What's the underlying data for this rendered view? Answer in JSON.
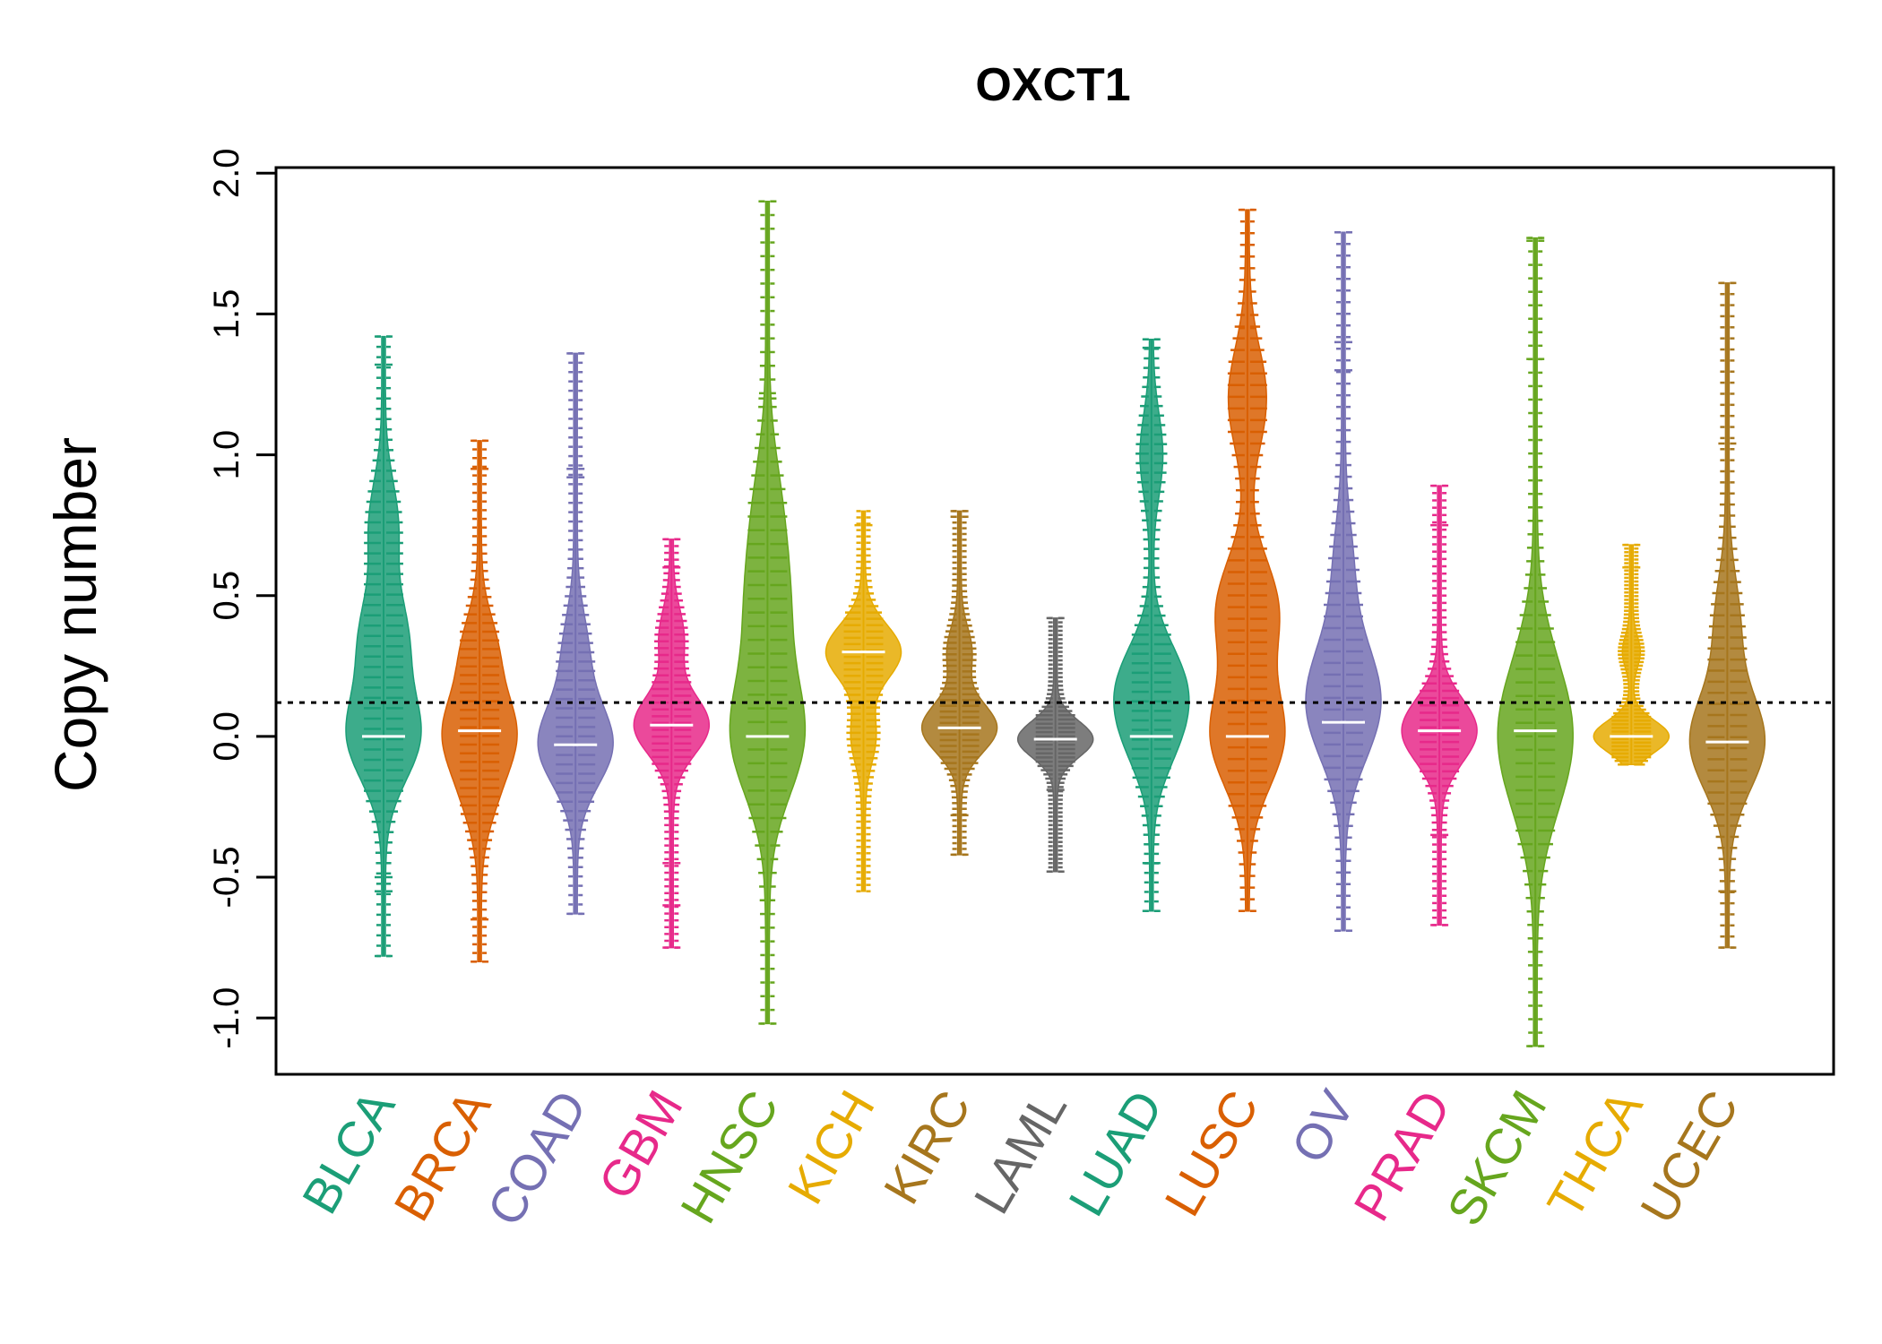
{
  "chart_data": {
    "type": "beanplot",
    "title": "OXCT1",
    "xlabel": "",
    "ylabel": "Copy number",
    "ylim": [
      -1.2,
      2.02
    ],
    "yticks": [
      "-1.0",
      "-0.5",
      "0.0",
      "0.5",
      "1.0",
      "1.5",
      "2.0"
    ],
    "ytick_values": [
      -1.0,
      -0.5,
      0.0,
      0.5,
      1.0,
      1.5,
      2.0
    ],
    "reference_line": 0.12,
    "grid": false,
    "legend": "none",
    "categories": [
      "BLCA",
      "BRCA",
      "COAD",
      "GBM",
      "HNSC",
      "KICH",
      "KIRC",
      "LAML",
      "LUAD",
      "LUSC",
      "OV",
      "PRAD",
      "SKCM",
      "THCA",
      "UCEC"
    ],
    "colors": [
      "#1B9E77",
      "#D95F02",
      "#7570B3",
      "#E7298A",
      "#66A61E",
      "#E6AB02",
      "#A6761D",
      "#666666",
      "#1B9E77",
      "#D95F02",
      "#7570B3",
      "#E7298A",
      "#66A61E",
      "#E6AB02",
      "#A6761D"
    ],
    "series": [
      {
        "category": "BLCA",
        "min": -0.78,
        "max": 1.42,
        "mean": 0.12,
        "modes": [
          [
            0.0,
            0.8
          ],
          [
            0.35,
            0.5
          ],
          [
            0.75,
            0.3
          ]
        ],
        "outliers": [
          -0.78,
          -0.55,
          -0.5,
          1.32,
          1.42
        ]
      },
      {
        "category": "BRCA",
        "min": -0.8,
        "max": 1.05,
        "mean": 0.12,
        "modes": [
          [
            0.02,
            1.0
          ],
          [
            0.3,
            0.5
          ],
          [
            -0.2,
            0.4
          ]
        ],
        "outliers": [
          -0.8,
          -0.65,
          0.95,
          1.05
        ]
      },
      {
        "category": "COAD",
        "min": -0.63,
        "max": 1.36,
        "mean": 0.12,
        "modes": [
          [
            -0.03,
            1.0
          ],
          [
            0.3,
            0.3
          ]
        ],
        "outliers": [
          -0.63,
          0.92,
          0.95,
          1.36
        ]
      },
      {
        "category": "GBM",
        "min": -0.75,
        "max": 0.7,
        "mean": 0.12,
        "modes": [
          [
            0.04,
            1.0
          ],
          [
            0.35,
            0.3
          ]
        ],
        "outliers": [
          -0.75,
          -0.6,
          -0.45,
          0.6,
          0.7
        ]
      },
      {
        "category": "HNSC",
        "min": -1.02,
        "max": 1.9,
        "mean": 0.12,
        "modes": [
          [
            0.0,
            0.8
          ],
          [
            0.45,
            0.4
          ],
          [
            0.8,
            0.25
          ]
        ],
        "outliers": [
          -1.02,
          1.2,
          1.9
        ]
      },
      {
        "category": "KICH",
        "min": -0.55,
        "max": 0.8,
        "mean": 0.12,
        "modes": [
          [
            0.3,
            1.0
          ],
          [
            0.0,
            0.3
          ]
        ],
        "outliers": [
          0.75
        ]
      },
      {
        "category": "KIRC",
        "min": -0.42,
        "max": 0.8,
        "mean": 0.12,
        "modes": [
          [
            0.03,
            1.0
          ],
          [
            0.3,
            0.3
          ]
        ],
        "outliers": [
          -0.42,
          -0.28,
          0.78,
          0.8
        ]
      },
      {
        "category": "LAML",
        "min": -0.48,
        "max": 0.42,
        "mean": 0.12,
        "modes": [
          [
            -0.01,
            1.0
          ]
        ],
        "outliers": [
          -0.48,
          -0.19,
          0.42
        ]
      },
      {
        "category": "LUAD",
        "min": -0.62,
        "max": 1.41,
        "mean": 0.12,
        "modes": [
          [
            0.0,
            0.6
          ],
          [
            0.2,
            0.8
          ],
          [
            1.0,
            0.3
          ]
        ],
        "outliers": [
          -0.62,
          -0.45,
          1.38,
          1.41
        ]
      },
      {
        "category": "LUSC",
        "min": -0.62,
        "max": 1.87,
        "mean": 0.12,
        "modes": [
          [
            0.0,
            0.6
          ],
          [
            0.45,
            0.5
          ],
          [
            1.2,
            0.3
          ]
        ],
        "outliers": [
          -0.62,
          1.45,
          1.87
        ]
      },
      {
        "category": "OV",
        "min": -0.69,
        "max": 1.79,
        "mean": 0.12,
        "modes": [
          [
            0.05,
            1.0
          ],
          [
            0.22,
            0.8
          ],
          [
            0.6,
            0.35
          ]
        ],
        "outliers": [
          -0.69,
          1.3,
          1.4,
          1.79
        ]
      },
      {
        "category": "PRAD",
        "min": -0.67,
        "max": 0.89,
        "mean": 0.12,
        "modes": [
          [
            0.02,
            1.0
          ]
        ],
        "outliers": [
          -0.67,
          -0.35,
          0.75,
          0.89
        ]
      },
      {
        "category": "SKCM",
        "min": -1.1,
        "max": 1.77,
        "mean": 0.12,
        "modes": [
          [
            0.02,
            0.8
          ],
          [
            -0.2,
            0.4
          ],
          [
            0.25,
            0.3
          ]
        ],
        "outliers": [
          -1.1,
          1.34,
          1.76,
          1.77
        ]
      },
      {
        "category": "THCA",
        "min": -0.1,
        "max": 0.68,
        "mean": 0.12,
        "modes": [
          [
            0.0,
            1.0
          ],
          [
            0.3,
            0.2
          ]
        ],
        "outliers": [
          0.6,
          0.68
        ]
      },
      {
        "category": "UCEC",
        "min": -0.75,
        "max": 1.61,
        "mean": 0.12,
        "modes": [
          [
            -0.02,
            1.0
          ],
          [
            0.4,
            0.3
          ]
        ],
        "outliers": [
          -0.75,
          -0.55,
          1.04,
          1.61
        ]
      }
    ]
  }
}
